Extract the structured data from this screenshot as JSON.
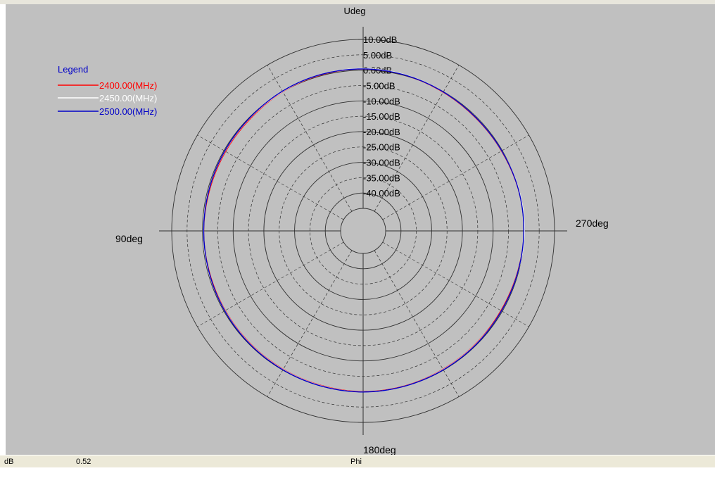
{
  "chart_data": {
    "type": "polar-line",
    "title": "",
    "top_label": "Udeg",
    "angle_labels": {
      "top": "",
      "left": "90deg",
      "right": "270deg",
      "bottom": "180deg"
    },
    "radial_tick_labels": [
      "10.00dB",
      "5.00dB",
      "0.00dB",
      "-5.00dB",
      "-10.00dB",
      "-15.00dB",
      "-20.00dB",
      "-25.00dB",
      "-30.00dB",
      "-35.00dB",
      "-40.00dB"
    ],
    "r_range_db": [
      -45,
      10
    ],
    "legend": {
      "title": "Legend",
      "position": "top-left",
      "entries": [
        {
          "label": "2400.00(MHz)",
          "color": "#ff0000"
        },
        {
          "label": "2450.00(MHz)",
          "color": "#ffffff"
        },
        {
          "label": "2500.00(MHz)",
          "color": "#0000c8"
        }
      ]
    },
    "series": [
      {
        "name": "2400.00(MHz)",
        "color": "#ff0000",
        "phi_deg": [
          0,
          15,
          30,
          45,
          60,
          75,
          90,
          105,
          120,
          135,
          150,
          165,
          180,
          195,
          210,
          225,
          240,
          255,
          270,
          285,
          300,
          315,
          330,
          345
        ],
        "gain_db": [
          0.4,
          0.3,
          0.0,
          -0.5,
          -0.6,
          -0.6,
          -0.4,
          -0.5,
          -0.5,
          -0.4,
          -0.3,
          -0.2,
          0.0,
          -0.1,
          -0.3,
          -0.4,
          -0.5,
          -0.3,
          0.1,
          0.0,
          -0.3,
          -0.4,
          -0.2,
          0.2
        ]
      },
      {
        "name": "2450.00(MHz)",
        "color": "#ffffff",
        "phi_deg": [
          0,
          15,
          30,
          45,
          60,
          75,
          90,
          105,
          120,
          135,
          150,
          165,
          180,
          195,
          210,
          225,
          240,
          255,
          270,
          285,
          300,
          315,
          330,
          345
        ],
        "gain_db": [
          0.5,
          0.4,
          0.1,
          -0.3,
          -0.4,
          -0.4,
          -0.3,
          -0.3,
          -0.4,
          -0.3,
          -0.2,
          -0.1,
          0.1,
          0.0,
          -0.2,
          -0.3,
          -0.3,
          -0.2,
          0.2,
          0.1,
          -0.2,
          -0.3,
          -0.1,
          0.3
        ]
      },
      {
        "name": "2500.00(MHz)",
        "color": "#0000c8",
        "phi_deg": [
          0,
          15,
          30,
          45,
          60,
          75,
          90,
          105,
          120,
          135,
          150,
          165,
          180,
          195,
          210,
          225,
          240,
          255,
          270,
          285,
          300,
          315,
          330,
          345
        ],
        "gain_db": [
          0.4,
          0.4,
          0.2,
          -0.2,
          -0.3,
          -0.4,
          -0.4,
          -0.4,
          -0.3,
          -0.2,
          -0.1,
          0.0,
          0.1,
          0.0,
          -0.1,
          -0.2,
          -0.3,
          -0.2,
          0.0,
          0.0,
          -0.2,
          -0.3,
          -0.1,
          0.2
        ]
      }
    ]
  },
  "status_bar": {
    "unit_label": "dB",
    "value": "0.52",
    "axis_label": "Phi"
  },
  "colors": {
    "plot_bg": "#c0c0c0",
    "status_bg": "#ece9d8",
    "grid": "#303030"
  }
}
